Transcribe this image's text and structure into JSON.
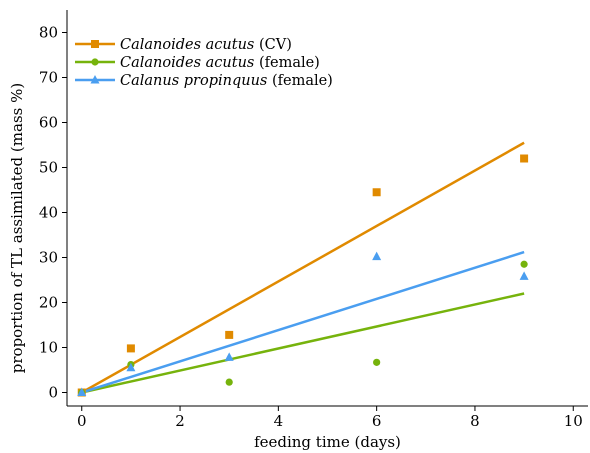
{
  "chart_data": {
    "type": "scatter",
    "xlabel": "feeding time (days)",
    "ylabel": "proportion of TL assimilated (mass %)",
    "xlim": [
      -0.3,
      10.3
    ],
    "ylim": [
      -3,
      85
    ],
    "xticks": [
      0,
      2,
      4,
      6,
      8,
      10
    ],
    "yticks": [
      0,
      10,
      20,
      30,
      40,
      50,
      60,
      70,
      80
    ],
    "grid": false,
    "legend_position": "top-left",
    "series": [
      {
        "name_italic": "Calanoides acutus",
        "name_rest": " (CV)",
        "color": "#E08A00",
        "marker": "square",
        "points": [
          [
            0,
            0
          ],
          [
            1,
            9.8
          ],
          [
            3,
            12.8
          ],
          [
            6,
            44.5
          ],
          [
            9,
            52
          ]
        ],
        "fit": [
          [
            0,
            0
          ],
          [
            9,
            55.5
          ]
        ]
      },
      {
        "name_italic": "Calanoides acutus",
        "name_rest": " (female)",
        "color": "#76B30C",
        "marker": "circle",
        "points": [
          [
            0,
            0
          ],
          [
            1,
            6.2
          ],
          [
            3,
            2.3
          ],
          [
            6,
            6.7
          ],
          [
            9,
            28.5
          ]
        ],
        "fit": [
          [
            0,
            0
          ],
          [
            9,
            22
          ]
        ]
      },
      {
        "name_italic": "Calanus propinquus",
        "name_rest": " (female)",
        "color": "#4A9EF0",
        "marker": "triangle",
        "points": [
          [
            0,
            0
          ],
          [
            1,
            5.5
          ],
          [
            3,
            7.8
          ],
          [
            6,
            30.2
          ],
          [
            9,
            25.8
          ]
        ],
        "fit": [
          [
            0,
            0
          ],
          [
            9,
            31.2
          ]
        ]
      }
    ]
  }
}
